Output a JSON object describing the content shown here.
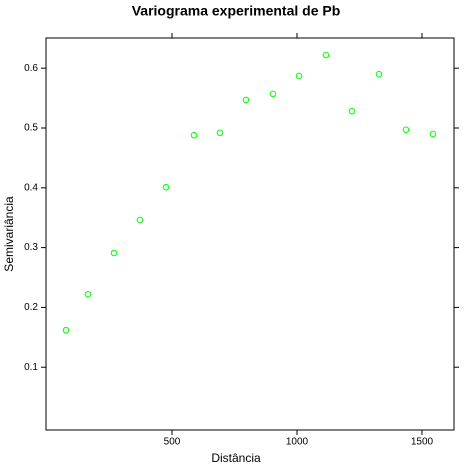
{
  "chart_data": {
    "type": "scatter",
    "title": "Variograma experimental de Pb",
    "x_label": "Distância",
    "y_label": "Semivariância",
    "series": [
      {
        "color": "#00ff00",
        "x": [
          76,
          164,
          268,
          372,
          476,
          588,
          692,
          796,
          904,
          1008,
          1116,
          1220,
          1328,
          1436,
          1544
        ],
        "values": [
          0.162,
          0.222,
          0.291,
          0.346,
          0.401,
          0.488,
          0.492,
          0.547,
          0.557,
          0.587,
          0.622,
          0.528,
          0.59,
          0.497,
          0.49
        ]
      }
    ],
    "xlim": [
      -4,
      1628
    ],
    "ylim": [
      -0.005,
      0.6505
    ],
    "xticks": [
      500,
      1000,
      1500
    ],
    "yticks": [
      0.1,
      0.2,
      0.3,
      0.4,
      0.5,
      0.6
    ]
  }
}
